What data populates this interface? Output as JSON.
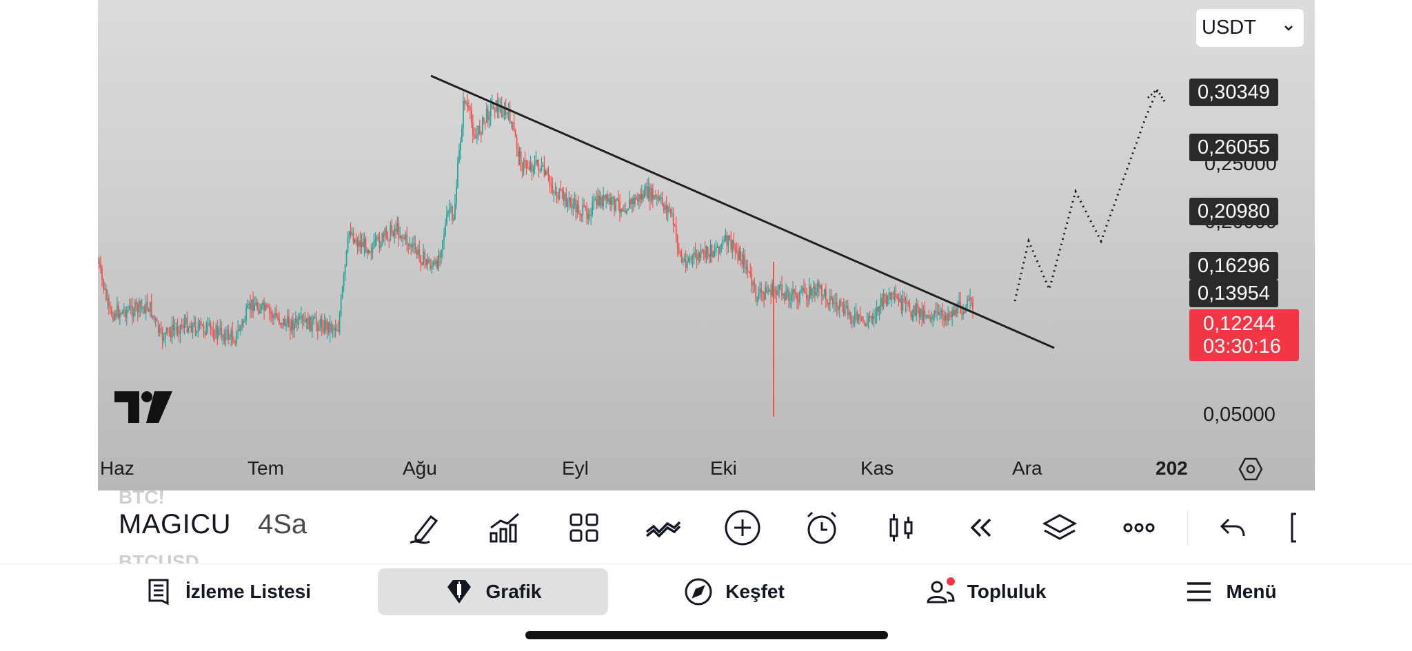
{
  "chart": {
    "currency": "USDT",
    "price_labels": [
      {
        "text": "0,30349"
      },
      {
        "text": "0,26055"
      },
      {
        "text": "0,20980"
      },
      {
        "text": "0,16296"
      },
      {
        "text": "0,13954"
      }
    ],
    "hidden_axis_labels": [
      "0,25000",
      "0,20000"
    ],
    "axis_price_bottom": "0,05000",
    "last_price": "0,12244",
    "countdown": "03:30:16",
    "time_labels": [
      "Haz",
      "Tem",
      "Ağu",
      "Eyl",
      "Eki",
      "Kas",
      "Ara",
      "202"
    ],
    "colors": {
      "up": "#26a69a",
      "down": "#ef5350",
      "last_price_bg": "#f23645",
      "label_bg": "#2a2a2a"
    }
  },
  "chart_data": {
    "type": "candlestick",
    "series": [
      {
        "x": [
          "Haz",
          "Tem",
          "Ağu",
          "Eyl",
          "Eki",
          "Kas",
          "Ara"
        ],
        "close_approx": [
          0.13,
          0.125,
          0.27,
          0.2,
          0.155,
          0.135,
          0.12244
        ]
      }
    ],
    "y_ticks": [
      "0,05000",
      "0,20000",
      "0,25000"
    ],
    "last_price": 0.12244,
    "trendline": "descending from August high through late November",
    "projection": "dotted zig-zag rising toward ~0.30",
    "grid": false
  },
  "toolbar": {
    "ghost_above": "BTC!",
    "symbol": "MAGICU",
    "ghost_below": "BTCUSD",
    "interval": "4Sa",
    "tools": [
      "draw-icon",
      "indicators-icon",
      "templates-icon",
      "compare-icon",
      "add-icon",
      "alert-icon",
      "chart-type-icon",
      "replay-icon",
      "layers-icon",
      "more-icon",
      "undo-icon",
      "fullscreen-icon"
    ]
  },
  "bottom_nav": {
    "items": [
      {
        "label": "İzleme Listesi",
        "icon": "watchlist-icon"
      },
      {
        "label": "Grafik",
        "icon": "chart-icon",
        "active": true
      },
      {
        "label": "Keşfet",
        "icon": "compass-icon"
      },
      {
        "label": "Topluluk",
        "icon": "community-icon",
        "badge": true
      },
      {
        "label": "Menü",
        "icon": "menu-icon"
      }
    ]
  }
}
